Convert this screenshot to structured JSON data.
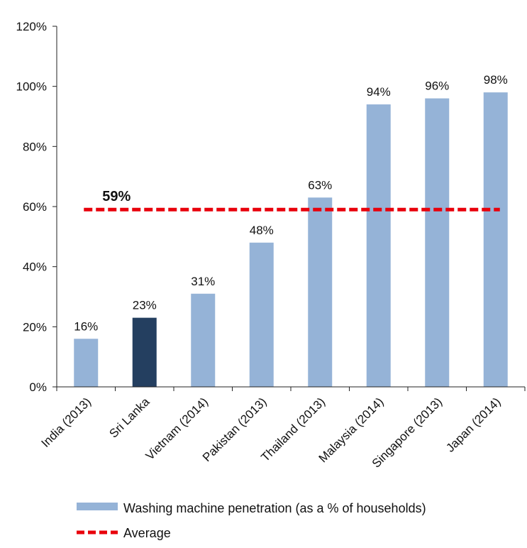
{
  "chart_data": {
    "type": "bar",
    "categories": [
      "India (2013)",
      "Sri Lanka",
      "Vietnam (2014)",
      "Pakistan (2013)",
      "Thailand (2013)",
      "Malaysia (2014)",
      "Singapore (2013)",
      "Japan (2014)"
    ],
    "series": [
      {
        "name": "Washing machine penetration (as a % of households)",
        "values": [
          16,
          23,
          31,
          48,
          63,
          94,
          96,
          98
        ],
        "data_labels": [
          "16%",
          "23%",
          "31%",
          "48%",
          "63%",
          "94%",
          "96%",
          "98%"
        ],
        "color": "#95b3d7",
        "highlight_index": 1,
        "highlight_color": "#243f60"
      }
    ],
    "average": {
      "name": "Average",
      "value": 59,
      "label": "59%",
      "color": "#e8000b"
    },
    "yticks": [
      "0%",
      "20%",
      "40%",
      "60%",
      "80%",
      "100%",
      "120%"
    ],
    "ytick_values": [
      0,
      20,
      40,
      60,
      80,
      100,
      120
    ],
    "ylim": [
      0,
      120
    ],
    "grid": false,
    "legend_placement": "bottom"
  }
}
